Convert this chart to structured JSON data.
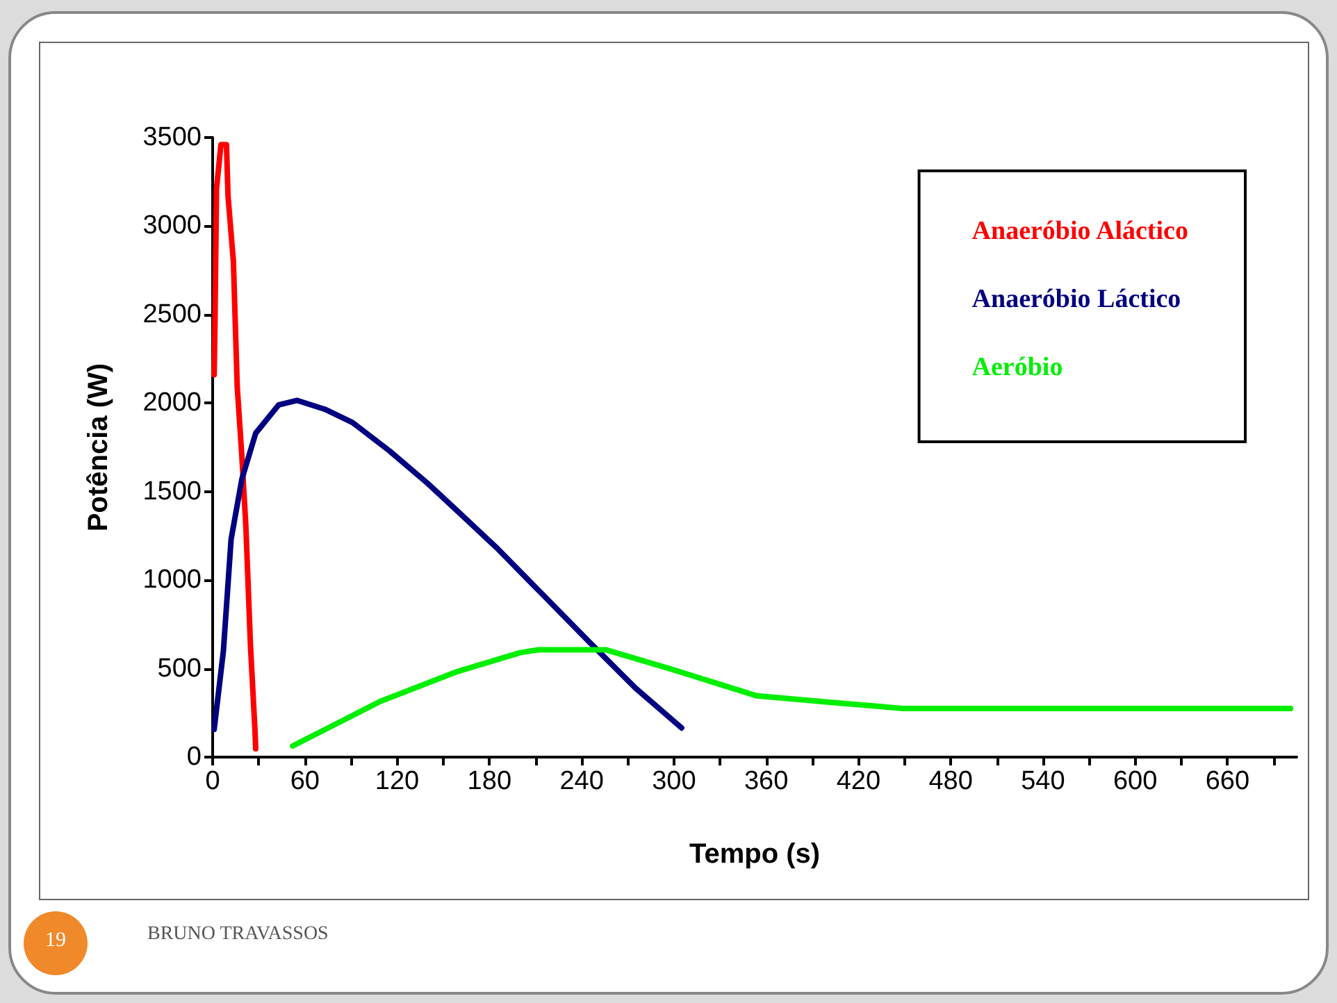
{
  "chart_data": {
    "type": "line",
    "xlabel": "Tempo (s)",
    "ylabel": "Potência (W)",
    "xlim": [
      0,
      705
    ],
    "ylim": [
      0,
      3500
    ],
    "xticks": [
      0,
      {
        "value": 30,
        "label": null
      },
      60,
      {
        "value": 90,
        "label": null
      },
      120,
      {
        "value": 150,
        "label": null
      },
      180,
      {
        "value": 210,
        "label": null
      },
      240,
      {
        "value": 270,
        "label": null
      },
      300,
      {
        "value": 330,
        "label": null
      },
      360,
      {
        "value": 390,
        "label": null
      },
      420,
      {
        "value": 450,
        "label": null
      },
      480,
      {
        "value": 510,
        "label": null
      },
      540,
      {
        "value": 570,
        "label": null
      },
      600,
      {
        "value": 630,
        "label": null
      },
      660,
      {
        "value": 690,
        "label": null
      }
    ],
    "yticks": [
      0,
      500,
      1000,
      1500,
      2000,
      2500,
      3000,
      3500
    ],
    "grid": false,
    "legend": "top right",
    "marker": "none",
    "line_style": "solid",
    "series": [
      {
        "name": "Anaeróbio Aláctico",
        "color": "#ff0000",
        "x": [
          1,
          1.5,
          2.5,
          5.4,
          9,
          10,
          13.5,
          16,
          19,
          21.6,
          24.6,
          27.5,
          28
        ],
        "values": [
          2160,
          2440,
          3210,
          3460,
          3460,
          3170,
          2800,
          2090,
          1700,
          1306,
          630,
          157,
          47
        ]
      },
      {
        "name": "Anaeróbio Láctico",
        "color": "#000080",
        "x": [
          1,
          7,
          12,
          19,
          28,
          43,
          55,
          73,
          91,
          115,
          140,
          158,
          185,
          215,
          245,
          275,
          305
        ],
        "values": [
          157,
          600,
          1230,
          1570,
          1830,
          1990,
          2015,
          1965,
          1890,
          1730,
          1545,
          1400,
          1180,
          915,
          650,
          390,
          165
        ]
      },
      {
        "name": "Aeróbio",
        "color": "#00ee00",
        "x": [
          52,
          109,
          158,
          200,
          212,
          256,
          299,
          354,
          405,
          449,
          701
        ],
        "values": [
          63,
          315,
          480,
          590,
          606,
          606,
          495,
          346,
          307,
          275,
          275
        ]
      }
    ],
    "annotations": [
      "19",
      "BRUNO TRAVASSOS"
    ]
  }
}
